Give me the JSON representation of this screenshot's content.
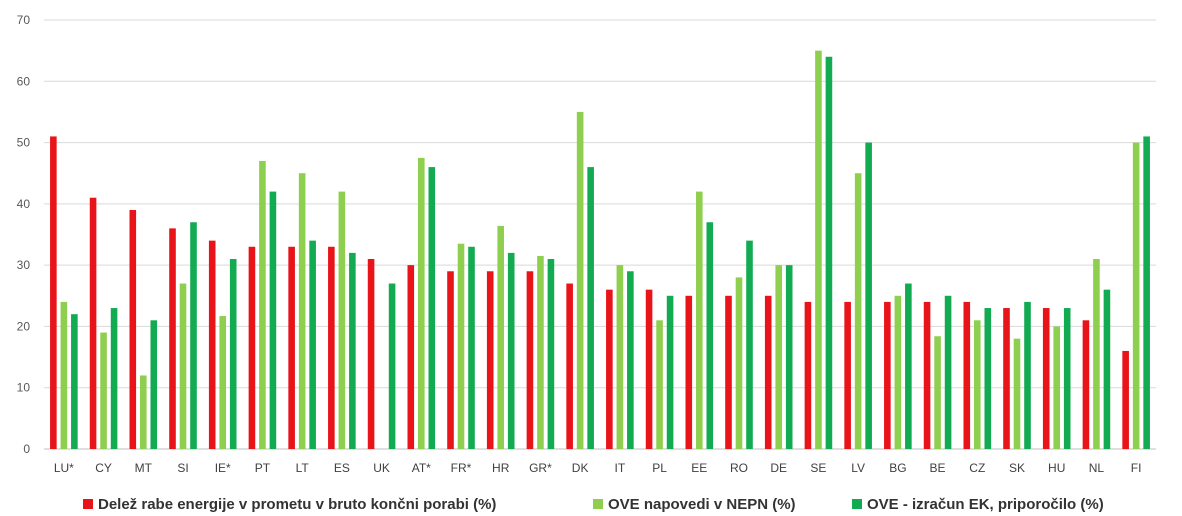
{
  "chart_data": {
    "type": "bar",
    "title": "",
    "xlabel": "",
    "ylabel": "",
    "ylim": [
      0,
      70
    ],
    "yticks": [
      0,
      10,
      20,
      30,
      40,
      50,
      60,
      70
    ],
    "grid": true,
    "legend_position": "bottom",
    "categories": [
      "LU*",
      "CY",
      "MT",
      "SI",
      "IE*",
      "PT",
      "LT",
      "ES",
      "UK",
      "AT*",
      "FR*",
      "HR",
      "GR*",
      "DK",
      "IT",
      "PL",
      "EE",
      "RO",
      "DE",
      "SE",
      "LV",
      "BG",
      "BE",
      "CZ",
      "SK",
      "HU",
      "NL",
      "FI"
    ],
    "series": [
      {
        "name": "Delež rabe energije v prometu v bruto končni porabi (%)",
        "color": "#e8141a",
        "values": [
          51,
          41,
          39,
          36,
          34,
          33,
          33,
          33,
          31,
          30,
          29,
          29,
          29,
          27,
          26,
          26,
          25,
          25,
          25,
          24,
          24,
          24,
          24,
          24,
          23,
          23,
          21,
          16
        ]
      },
      {
        "name": "OVE napovedi v NEPN (%)",
        "color": "#8fcf4f",
        "values": [
          24,
          19,
          12,
          27,
          21.7,
          47,
          45,
          42,
          null,
          47.5,
          33.5,
          36.4,
          31.5,
          55,
          30,
          21,
          42,
          28,
          30,
          65,
          45,
          25,
          18.4,
          21,
          18,
          20,
          31,
          50
        ]
      },
      {
        "name": "OVE - izračun EK, priporočilo (%)",
        "color": "#13ab52",
        "values": [
          22,
          23,
          21,
          37,
          31,
          42,
          34,
          32,
          27,
          46,
          33,
          32,
          31,
          46,
          29,
          25,
          37,
          34,
          30,
          64,
          50,
          27,
          25,
          23,
          24,
          23,
          26,
          51
        ]
      }
    ]
  }
}
